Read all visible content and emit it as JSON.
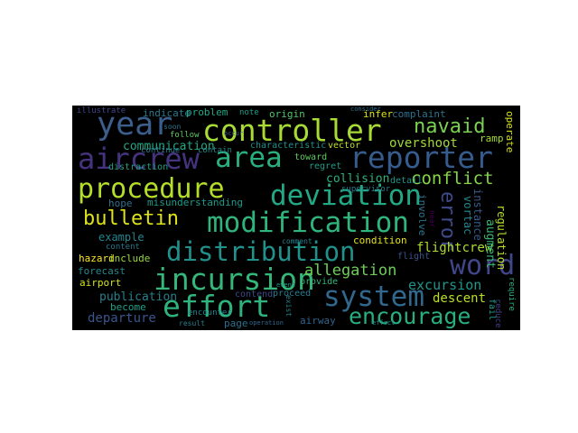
{
  "words": [
    {
      "text": "controller",
      "color": "#a8db34"
    },
    {
      "text": "year",
      "color": "#3b5e8c"
    },
    {
      "text": "navaid",
      "color": "#7ad151"
    },
    {
      "text": "aircrew",
      "color": "#46337f"
    },
    {
      "text": "area",
      "color": "#2ab07f"
    },
    {
      "text": "reporter",
      "color": "#365c8d"
    },
    {
      "text": "procedure",
      "color": "#b5de2b"
    },
    {
      "text": "deviation",
      "color": "#22a884"
    },
    {
      "text": "conflict",
      "color": "#86d549"
    },
    {
      "text": "bulletin",
      "color": "#dde318"
    },
    {
      "text": "modification",
      "color": "#2fb47c"
    },
    {
      "text": "distribution",
      "color": "#21918c"
    },
    {
      "text": "word",
      "color": "#404688"
    },
    {
      "text": "incursion",
      "color": "#35b779"
    },
    {
      "text": "allegation",
      "color": "#6ece58"
    },
    {
      "text": "system",
      "color": "#31688e"
    },
    {
      "text": "effort",
      "color": "#2eb37c"
    },
    {
      "text": "encourage",
      "color": "#29af7f"
    },
    {
      "text": "error",
      "color": "#3e4a89"
    },
    {
      "text": "communication",
      "color": "#22a884"
    },
    {
      "text": "overshoot",
      "color": "#a0da39"
    },
    {
      "text": "flightcrew",
      "color": "#addc30"
    },
    {
      "text": "excursion",
      "color": "#1f968b"
    },
    {
      "text": "publication",
      "color": "#277f8e"
    },
    {
      "text": "departure",
      "color": "#39558c"
    },
    {
      "text": "descent",
      "color": "#bddf26"
    },
    {
      "text": "augment",
      "color": "#37b878"
    },
    {
      "text": "regulation",
      "color": "#b8de29"
    },
    {
      "text": "indicate",
      "color": "#2a788e"
    },
    {
      "text": "problem",
      "color": "#22a785"
    },
    {
      "text": "complaint",
      "color": "#2c728e"
    },
    {
      "text": "collision",
      "color": "#2db27d"
    },
    {
      "text": "misunderstanding",
      "color": "#1e9b8a"
    },
    {
      "text": "example",
      "color": "#25848e"
    },
    {
      "text": "forecast",
      "color": "#23898e"
    },
    {
      "text": "hazard",
      "color": "#fde725"
    },
    {
      "text": "airport",
      "color": "#d2e21b"
    },
    {
      "text": "include",
      "color": "#9bd93c"
    },
    {
      "text": "become",
      "color": "#1fa088"
    },
    {
      "text": "contend",
      "color": "#3f4889"
    },
    {
      "text": "proceed",
      "color": "#287c8e"
    },
    {
      "text": "page",
      "color": "#2c718e"
    },
    {
      "text": "airway",
      "color": "#33638d"
    },
    {
      "text": "infer",
      "color": "#dde318"
    },
    {
      "text": "illustrate",
      "color": "#404588"
    },
    {
      "text": "origin",
      "color": "#50c46a"
    },
    {
      "text": "characteristic",
      "color": "#21918c"
    },
    {
      "text": "vector",
      "color": "#c0df25"
    },
    {
      "text": "toward",
      "color": "#63cb5f"
    },
    {
      "text": "regret",
      "color": "#1f9e89"
    },
    {
      "text": "distraction",
      "color": "#20a386"
    },
    {
      "text": "continue",
      "color": "#297b8e"
    },
    {
      "text": "contain",
      "color": "#238a8d"
    },
    {
      "text": "hope",
      "color": "#2d718e"
    },
    {
      "text": "content",
      "color": "#2a768e"
    },
    {
      "text": "condition",
      "color": "#e5e419"
    },
    {
      "text": "detail",
      "color": "#1f958b"
    },
    {
      "text": "supervisor",
      "color": "#277e8e"
    },
    {
      "text": "involve",
      "color": "#2a768e"
    },
    {
      "text": "instance",
      "color": "#38598c"
    },
    {
      "text": "vortac",
      "color": "#25858e"
    },
    {
      "text": "ramp",
      "color": "#a8db34"
    },
    {
      "text": "operate",
      "color": "#d8e219"
    },
    {
      "text": "require",
      "color": "#2ab07f"
    },
    {
      "text": "fail",
      "color": "#1f9f88"
    },
    {
      "text": "reduce",
      "color": "#433e85"
    },
    {
      "text": "provide",
      "color": "#35b779"
    },
    {
      "text": "flight",
      "color": "#3b528b"
    },
    {
      "text": "comment",
      "color": "#26828e"
    },
    {
      "text": "note",
      "color": "#1f9e89"
    },
    {
      "text": "follow",
      "color": "#5ec962"
    },
    {
      "text": "soon",
      "color": "#2c738e"
    },
    {
      "text": "result",
      "color": "#26828e"
    },
    {
      "text": "operation",
      "color": "#31688e"
    },
    {
      "text": "effect",
      "color": "#21918c"
    },
    {
      "text": "exist",
      "color": "#25858e"
    },
    {
      "text": "encounter",
      "color": "#24868e"
    },
    {
      "text": "event",
      "color": "#1f9e89"
    },
    {
      "text": "consider",
      "color": "#2c728e"
    },
    {
      "text": "near",
      "color": "#440154"
    },
    {
      "text": "occur",
      "color": "#3b528b"
    }
  ]
}
